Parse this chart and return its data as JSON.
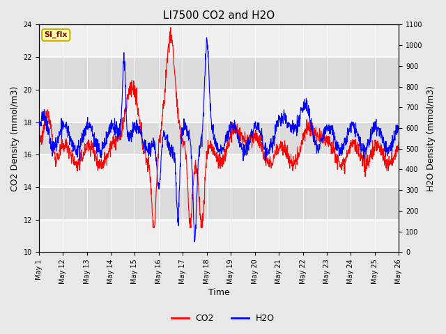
{
  "title": "LI7500 CO2 and H2O",
  "xlabel": "Time",
  "ylabel_left": "CO2 Density (mmol/m3)",
  "ylabel_right": "H2O Density (mmol/m3)",
  "co2_ylim": [
    10,
    24
  ],
  "h2o_ylim": [
    0,
    1100
  ],
  "co2_color": "#FF0000",
  "h2o_color": "#0000FF",
  "fig_bg_color": "#E8E8E8",
  "plot_bg_color": "#FFFFFF",
  "band_color_light": "#F0F0F0",
  "band_color_dark": "#DCDCDC",
  "annotation_text": "SI_flx",
  "annotation_bg": "#FFFFAA",
  "annotation_border": "#CCAA00",
  "legend_co2": "CO2",
  "legend_h2o": "H2O",
  "title_fontsize": 11,
  "axis_fontsize": 9,
  "tick_fontsize": 7,
  "legend_fontsize": 9,
  "x_tick_positions": [
    0,
    1,
    2,
    3,
    4,
    5,
    6,
    7,
    8,
    9,
    10,
    11,
    12,
    13,
    14,
    15
  ],
  "x_tick_labels": [
    "May 1",
    "May 12",
    "May 13",
    "May 14",
    "May 15",
    "May 16",
    "May 17",
    "May 18",
    "May 19",
    "May 20",
    "May 21",
    "May 22",
    "May 23",
    "May 24",
    "May 25",
    "May 26"
  ],
  "y_ticks_left": [
    10,
    12,
    14,
    16,
    18,
    20,
    22,
    24
  ],
  "y_ticks_right": [
    0,
    100,
    200,
    300,
    400,
    500,
    600,
    700,
    800,
    900,
    1000,
    1100
  ]
}
